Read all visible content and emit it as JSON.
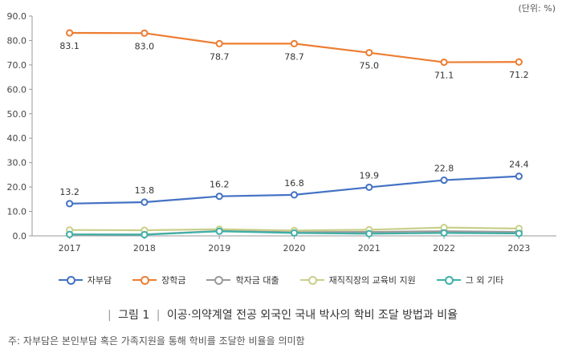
{
  "unit_label": "(단위: %)",
  "caption": {
    "figure": "그림 1",
    "title": "이공·의약계열 전공 외국인 국내 박사의 학비 조달 방법과 비율"
  },
  "note": "주: 자부담은 본인부담 혹은 가족지원을 통해 학비를 조달한 비율을 의미함",
  "chart_data": {
    "type": "line",
    "x": [
      "2017",
      "2018",
      "2019",
      "2020",
      "2021",
      "2022",
      "2023"
    ],
    "ylim": [
      0,
      90
    ],
    "yticks": [
      "0.0",
      "10.0",
      "20.0",
      "30.0",
      "40.0",
      "50.0",
      "60.0",
      "70.0",
      "80.0",
      "90.0"
    ],
    "grid": false,
    "legend_position": "bottom",
    "series": [
      {
        "name": "자부담",
        "color": "#4472c4",
        "values": [
          13.2,
          13.8,
          16.2,
          16.8,
          19.9,
          22.8,
          24.4
        ],
        "labels": [
          "13.2",
          "13.8",
          "16.2",
          "16.8",
          "19.9",
          "22.8",
          "24.4"
        ],
        "label_position": "above"
      },
      {
        "name": "장학금",
        "color": "#ed7d31",
        "values": [
          83.1,
          83.0,
          78.7,
          78.7,
          75.0,
          71.1,
          71.2
        ],
        "labels": [
          "83.1",
          "83.0",
          "78.7",
          "78.7",
          "75.0",
          "71.1",
          "71.2"
        ],
        "label_position": "below"
      },
      {
        "name": "학자금 대출",
        "color": "#9a9a9a",
        "values": [
          0.6,
          0.6,
          2.0,
          1.5,
          1.6,
          1.9,
          1.6
        ],
        "labels": []
      },
      {
        "name": "재직직장의 교육비 지원",
        "color": "#c9cf8a",
        "values": [
          2.4,
          2.3,
          2.7,
          2.2,
          2.5,
          3.4,
          3.0
        ],
        "labels": []
      },
      {
        "name": "그 외 기타",
        "color": "#3fb0a8",
        "values": [
          0.6,
          0.5,
          1.9,
          1.2,
          0.9,
          1.2,
          1.0
        ],
        "labels": []
      }
    ]
  }
}
